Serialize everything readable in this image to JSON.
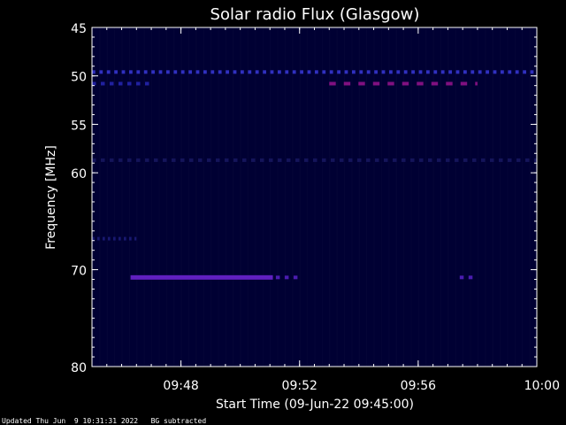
{
  "chart_data": {
    "type": "heatmap",
    "title": "Solar radio Flux (Glasgow)",
    "xlabel": "Start Time (09-Jun-22 09:45:00)",
    "ylabel": "Frequency [MHz]",
    "x_unit": "minutes after 09:45:00",
    "xlim": [
      0,
      15
    ],
    "ylim": [
      45,
      80
    ],
    "y_axis_inverted": true,
    "x_ticks": [
      {
        "value": 3,
        "label": "09:48"
      },
      {
        "value": 7,
        "label": "09:52"
      },
      {
        "value": 11,
        "label": "09:56"
      },
      {
        "value": 15,
        "label": "10:00"
      }
    ],
    "y_ticks": [
      {
        "value": 45,
        "label": "45"
      },
      {
        "value": 50,
        "label": "50"
      },
      {
        "value": 55,
        "label": "55"
      },
      {
        "value": 60,
        "label": "60"
      },
      {
        "value": 70,
        "label": "70"
      },
      {
        "value": 80,
        "label": "80"
      }
    ],
    "background_color": "#000033",
    "features": [
      {
        "name": "continuous band",
        "freq_mhz": 49.6,
        "t_start": 0,
        "t_end": 15,
        "dashed": true,
        "color": "#3030c0"
      },
      {
        "name": "intermittent band",
        "freq_mhz": 50.8,
        "t_start": 0,
        "t_end": 2,
        "dashed": true,
        "color": "#2020a0"
      },
      {
        "name": "bright band",
        "freq_mhz": 50.8,
        "t_start": 8,
        "t_end": 13,
        "dashed": true,
        "color": "#801080"
      },
      {
        "name": "strong emission",
        "freq_mhz": 70.8,
        "t_start": 1.3,
        "t_end": 6.1,
        "dashed": false,
        "color": "#6020c0"
      },
      {
        "name": "strong emission fragments",
        "freq_mhz": 70.8,
        "t_start": 6.2,
        "t_end": 7.0,
        "dashed": true,
        "color": "#4a1cb0"
      },
      {
        "name": "late emission",
        "freq_mhz": 70.8,
        "t_start": 12.4,
        "t_end": 12.9,
        "dashed": true,
        "color": "#4a1cb0"
      },
      {
        "name": "faint band",
        "freq_mhz": 66.8,
        "t_start": 0,
        "t_end": 1.5,
        "dashed": true,
        "color": "#181870"
      },
      {
        "name": "faint band",
        "freq_mhz": 58.7,
        "t_start": 0,
        "t_end": 15,
        "dashed": true,
        "color": "#14145a"
      }
    ],
    "colors": {
      "frame": "#ffffff",
      "text": "#ffffff",
      "page_background": "#000000"
    }
  },
  "footer": {
    "text": "Updated Thu Jun  9 10:31:31 2022   BG subtracted"
  }
}
